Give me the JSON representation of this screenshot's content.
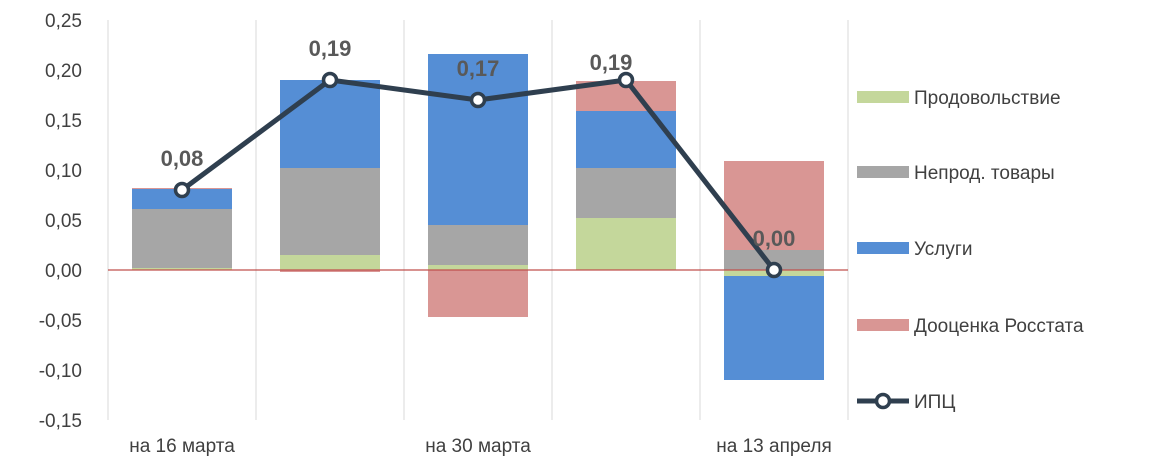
{
  "chart_data": {
    "type": "bar",
    "stacked": true,
    "categories": [
      "на 16 марта",
      "",
      "на 30 марта",
      "",
      "на 13 апреля"
    ],
    "x_tick_labels": [
      "на 16 марта",
      "на 30 марта",
      "на 13 апреля"
    ],
    "ylim": [
      -0.15,
      0.25
    ],
    "y_ticks": [
      "-0,15",
      "-0,10",
      "-0,05",
      "0,00",
      "0,05",
      "0,10",
      "0,15",
      "0,20",
      "0,25"
    ],
    "y_tick_values": [
      -0.15,
      -0.1,
      -0.05,
      0.0,
      0.05,
      0.1,
      0.15,
      0.2,
      0.25
    ],
    "grid": "vertical",
    "legend_position": "right",
    "series": [
      {
        "name": "Продовольствие",
        "color": "#c4d79b",
        "values": [
          0.002,
          0.015,
          0.005,
          0.052,
          -0.006
        ]
      },
      {
        "name": "Непрод. товары",
        "color": "#a6a6a6",
        "values": [
          0.059,
          0.087,
          0.04,
          0.05,
          0.02
        ]
      },
      {
        "name": "Услуги",
        "color": "#558ed5",
        "values": [
          0.02,
          0.088,
          0.171,
          0.057,
          -0.104
        ]
      },
      {
        "name": "Дооценка Росстата",
        "color": "#d99694",
        "values": [
          0.001,
          -0.002,
          -0.047,
          0.03,
          0.089
        ]
      }
    ],
    "line_series": {
      "name": "ИПЦ",
      "color": "#2f3f4f",
      "values": [
        0.08,
        0.19,
        0.17,
        0.19,
        0.0
      ],
      "labels": [
        "0,08",
        "0,19",
        "0,17",
        "0,19",
        "0,00"
      ]
    }
  }
}
